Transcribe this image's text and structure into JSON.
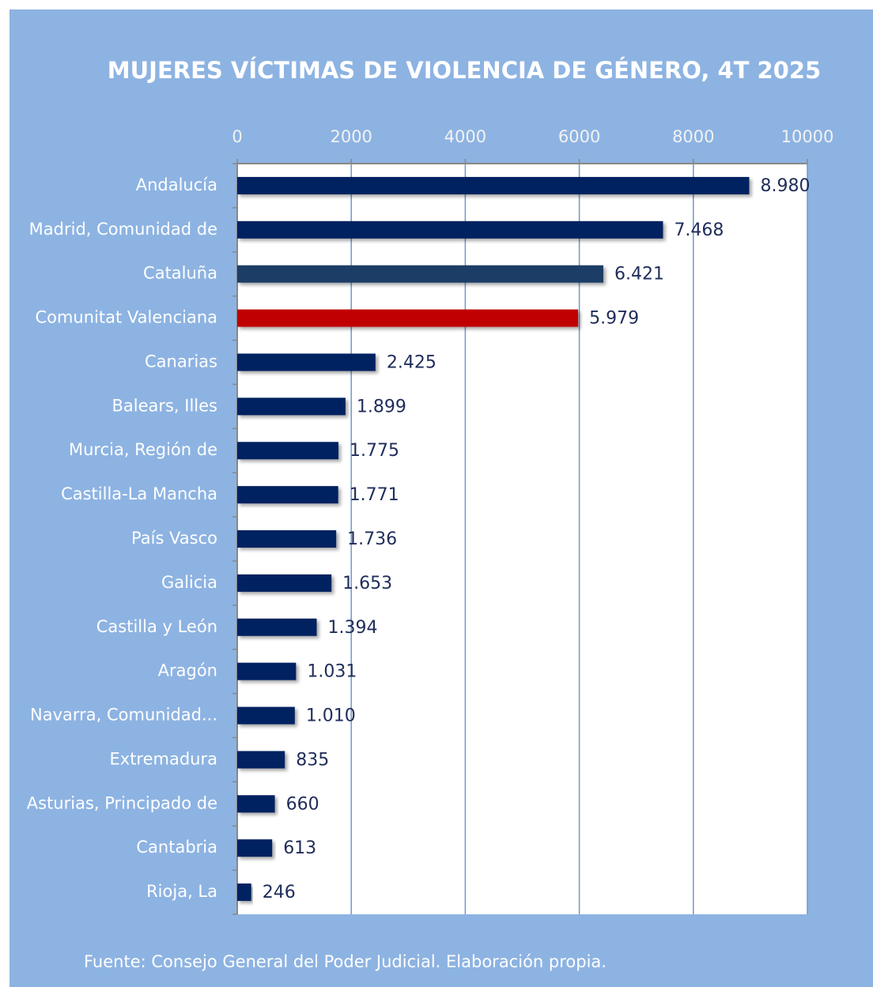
{
  "chart_data": {
    "type": "bar",
    "orientation": "horizontal",
    "title": "MUJERES VÍCTIMAS DE VIOLENCIA DE GÉNERO, 4T 2025",
    "categories": [
      "Andalucía",
      "Madrid, Comunidad de",
      "Cataluña",
      "Comunitat Valenciana",
      "Canarias",
      "Balears, Illes",
      "Murcia, Región de",
      "Castilla-La Mancha",
      "País Vasco",
      "Galicia",
      "Castilla y León",
      "Aragón",
      "Navarra, Comunidad...",
      "Extremadura",
      "Asturias, Principado de",
      "Cantabria",
      "Rioja, La"
    ],
    "values": [
      8980,
      7468,
      6421,
      5979,
      2425,
      1899,
      1775,
      1771,
      1736,
      1653,
      1394,
      1031,
      1010,
      835,
      660,
      613,
      246
    ],
    "value_labels": [
      "8.980",
      "7.468",
      "6.421",
      "5.979",
      "2.425",
      "1.899",
      "1.775",
      "1.771",
      "1.736",
      "1.653",
      "1.394",
      "1.031",
      "1.010",
      "835",
      "660",
      "613",
      "246"
    ],
    "colors": [
      "#002060",
      "#002060",
      "#1f3d66",
      "#c00000",
      "#002060",
      "#002060",
      "#002060",
      "#002060",
      "#002060",
      "#002060",
      "#002060",
      "#002060",
      "#002060",
      "#002060",
      "#002060",
      "#002060",
      "#002060"
    ],
    "xlim": [
      0,
      10000
    ],
    "xticks": [
      0,
      2000,
      4000,
      6000,
      8000,
      10000
    ],
    "grid": true,
    "source": "Fuente:  Consejo General del Poder Judicial. Elaboración propia."
  }
}
